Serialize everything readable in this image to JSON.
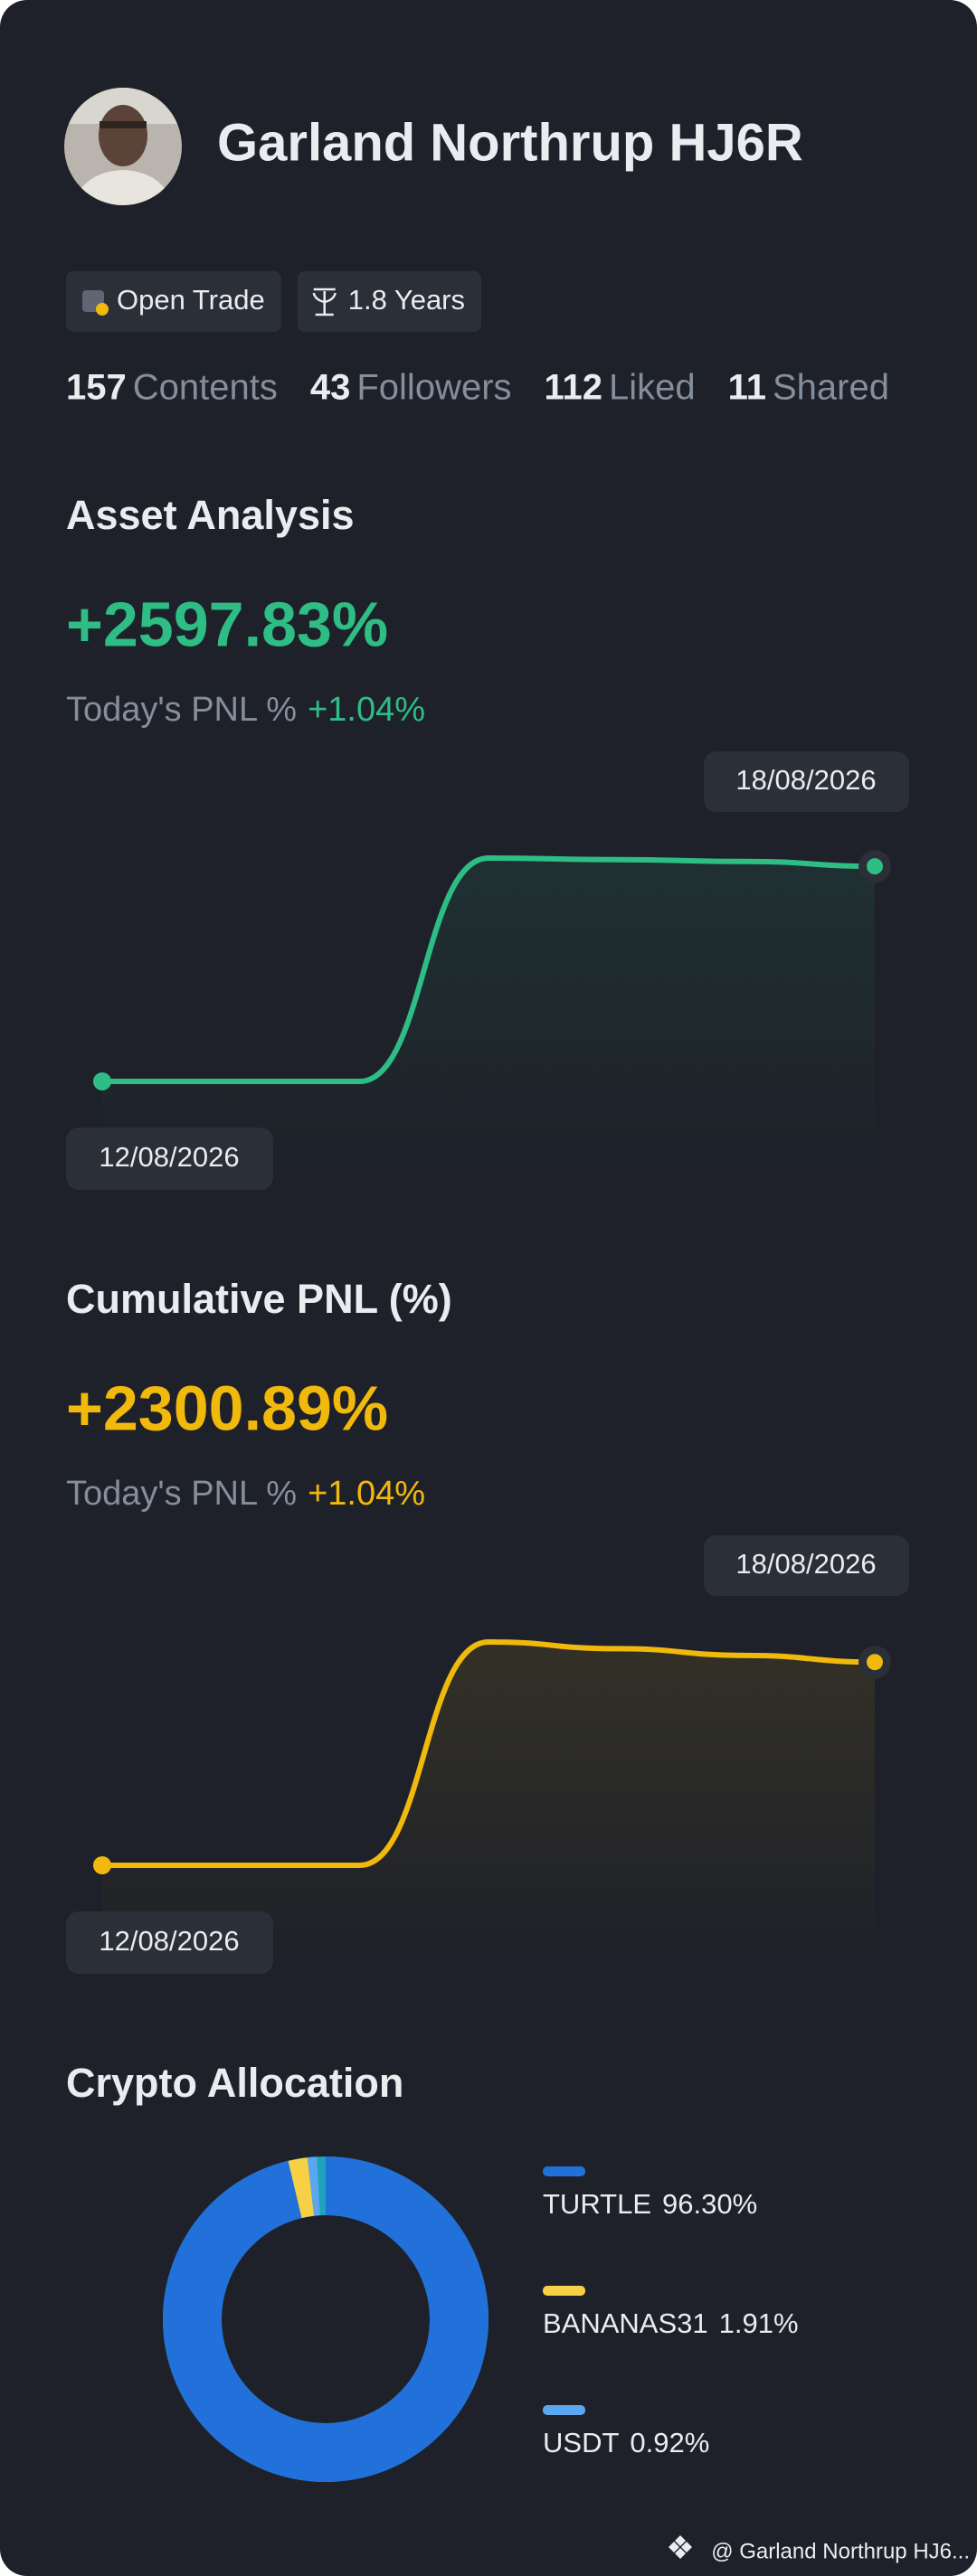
{
  "profile": {
    "name": "Garland Northrup HJ6R",
    "badges": [
      "Open Trade",
      "1.8 Years"
    ],
    "stats": [
      {
        "value": 157,
        "label": "Contents"
      },
      {
        "value": 43,
        "label": "Followers"
      },
      {
        "value": 112,
        "label": "Liked"
      },
      {
        "value": 11,
        "label": "Shared"
      }
    ]
  },
  "chart_data": [
    {
      "type": "line",
      "title": "Asset Analysis",
      "headline": "+2597.83%",
      "pnl_label": "Today's PNL %",
      "pnl_value": "+1.04%",
      "categories": [
        "12/08/2026",
        null,
        null,
        null,
        null,
        null,
        "18/08/2026"
      ],
      "series": [
        {
          "color": "#2ebd85",
          "values": [
            0,
            0,
            0,
            100,
            99.3,
            98.5,
            96.3
          ]
        }
      ]
    },
    {
      "type": "line",
      "title": "Cumulative PNL (%)",
      "headline": "+2300.89%",
      "pnl_label": "Today's PNL %",
      "pnl_value": "+1.04%",
      "categories": [
        "12/08/2026",
        null,
        null,
        null,
        null,
        null,
        "18/08/2026"
      ],
      "series": [
        {
          "color": "#f0b90b",
          "values": [
            0,
            0,
            0,
            100,
            97,
            94,
            91
          ]
        }
      ]
    },
    {
      "type": "donut",
      "title": "Crypto Allocation",
      "categories": [
        "TURTLE",
        "BANANAS31",
        "USDT"
      ],
      "values": [
        96.3,
        1.91,
        0.92
      ],
      "value_labels": [
        "96.30%",
        "1.91%",
        "0.92%"
      ],
      "colors": [
        "#2270da",
        "#f7d046",
        "#5aa7f0"
      ]
    }
  ],
  "footer": "@ Garland Northrup HJ6..."
}
